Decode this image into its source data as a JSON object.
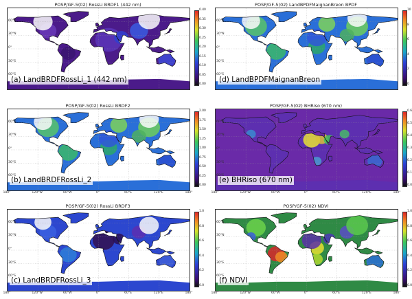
{
  "panels": [
    {
      "title": "POSP/GF-5(02) RossLi BRDF1 (442 nm)",
      "caption": "(a) LandBRDFRossLi_1 (442 nm)",
      "colorbar": {
        "ticks": [
          "0.40",
          "0.35",
          "0.30",
          "0.25",
          "0.20",
          "0.15",
          "0.10",
          "0.05",
          "0.00"
        ],
        "range": [
          0,
          0.4
        ]
      },
      "lat_labels": [
        "60°N",
        "30°N",
        "0°",
        "30°S",
        "60°S"
      ],
      "lon_labels": [],
      "palette": "purple-dominant",
      "background": "#ffffff"
    },
    {
      "title": "POSP/GF-5(02) LandBPDFMaignanBreon BPDF",
      "caption": "(d) LandBPDFMaignanBreon",
      "colorbar": {
        "ticks": [
          "10",
          "8",
          "6",
          "4",
          "2",
          "0"
        ],
        "range": [
          0,
          10
        ]
      },
      "lat_labels": [
        "60°N",
        "30°N",
        "0°",
        "30°S",
        "60°S"
      ],
      "lon_labels": [],
      "palette": "green-blue",
      "background": "#ffffff"
    },
    {
      "title": "POSP/GF-5(02) RossLi BRDF2",
      "caption": "(b) LandBRDFRossLi_2",
      "colorbar": {
        "ticks": [
          "2.00",
          "1.75",
          "1.50",
          "1.25",
          "1.00",
          "0.75",
          "0.50",
          "0.25",
          "0.00"
        ],
        "range": [
          0,
          2
        ]
      },
      "lat_labels": [
        "60°N",
        "30°N",
        "0°",
        "30°S",
        "60°S"
      ],
      "lon_labels": [
        "180°",
        "120°W",
        "60°W",
        "0°",
        "60°E",
        "120°E",
        "180°"
      ],
      "palette": "green-blue",
      "background": "#ffffff"
    },
    {
      "title": "POSP/GF-5(02) BHRiso (670 nm)",
      "caption": "(e) BHRiso (670 nm)",
      "colorbar": {
        "ticks": [
          "0.6",
          "0.5",
          "0.4",
          "0.3",
          "0.2",
          "0.1",
          "0.0"
        ],
        "range": [
          0,
          0.6
        ]
      },
      "lat_labels": [
        "60°N",
        "30°N",
        "0°",
        "30°S",
        "60°S"
      ],
      "lon_labels": [
        "180°",
        "120°W",
        "60°W",
        "0°",
        "60°E",
        "120°E",
        "180°"
      ],
      "palette": "desert-bright",
      "background": "#6a2aa8"
    },
    {
      "title": "POSP/GF-5(02) RossLi BRDF3",
      "caption": "(c) LandBRDFRossLi_3",
      "colorbar": {
        "ticks": [
          "1.0",
          "0.8",
          "0.6",
          "0.4",
          "0.2",
          "0.0"
        ],
        "range": [
          0,
          1
        ]
      },
      "lat_labels": [
        "60°N",
        "30°N",
        "0°",
        "30°S",
        "60°S"
      ],
      "lon_labels": [
        "180°",
        "120°W",
        "60°W",
        "0°",
        "60°E",
        "120°E",
        "180°"
      ],
      "palette": "blue-dark",
      "background": "#ffffff"
    },
    {
      "title": "POSP/GF-5(02) NDVI",
      "caption": "(f) NDVI",
      "colorbar": {
        "ticks": [
          "1.0",
          "0.8",
          "0.6",
          "0.4",
          "0.2",
          "0.0"
        ],
        "range": [
          0,
          1
        ]
      },
      "lat_labels": [
        "60°N",
        "30°N",
        "0°",
        "30°S",
        "60°S"
      ],
      "lon_labels": [
        "180°",
        "120°W",
        "60°W",
        "0°",
        "60°E",
        "120°E",
        "180°"
      ],
      "palette": "ndvi",
      "background": "#ffffff"
    }
  ]
}
